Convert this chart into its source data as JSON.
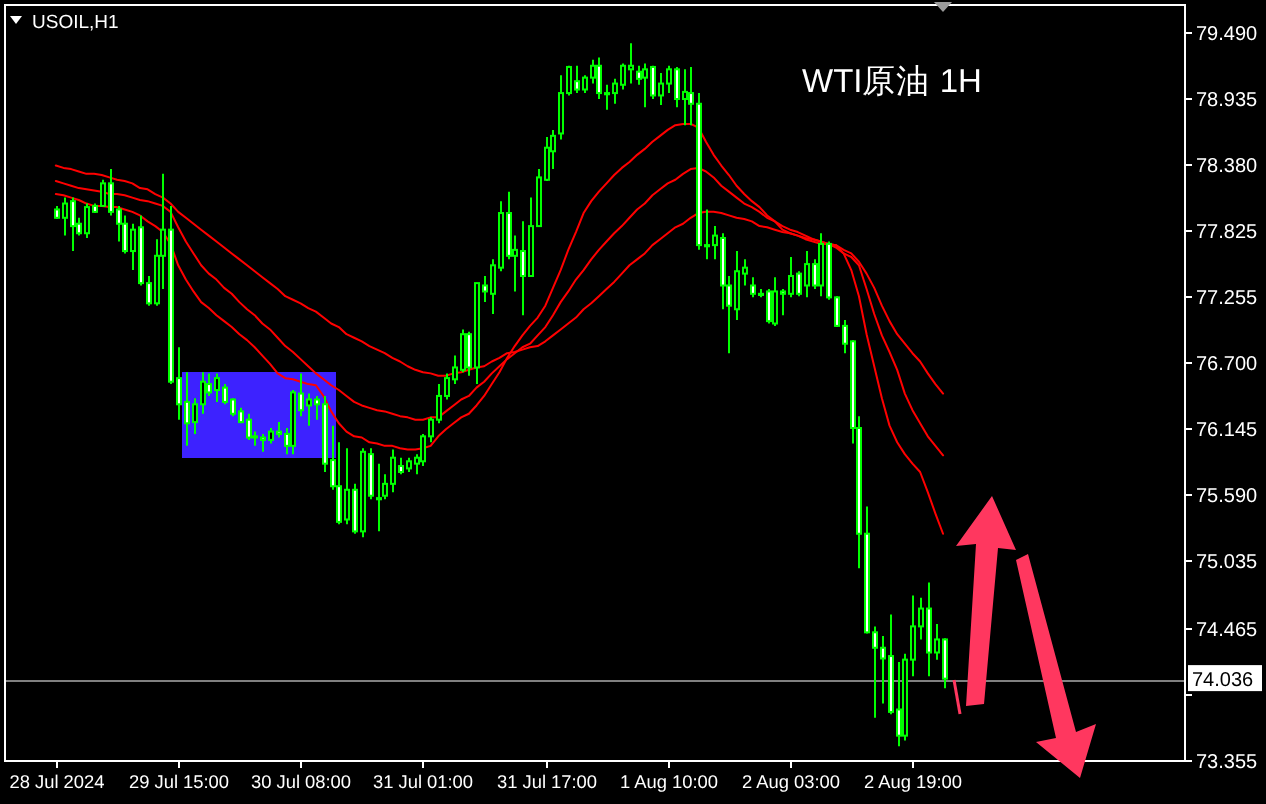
{
  "chart_data": {
    "type": "candlestick",
    "title": "USOIL,H1",
    "annotations": [
      "WTI原油 1H"
    ],
    "color": "#00ff00",
    "colors": [
      "#ffffff",
      "#000000",
      "#ffffff",
      "#ffffff",
      "#000000",
      "#ffffff",
      "#000000",
      "#ffffff",
      "#ffffff",
      "#ffffff",
      "#000000",
      "#ffffff",
      "#ffffff",
      "#000000",
      "#000000",
      "#ffffff",
      "#ffffff",
      "#ffffff",
      "#000000",
      "#000000",
      "#ffffff",
      "#000000",
      "#ffffff",
      "#ffffff",
      "#ffffff",
      "#ffffff",
      "#ffffff",
      "#ffffff",
      "#000000",
      "#ffffff",
      "#ffffff",
      "#000000",
      "#ffffff",
      "#000000",
      "#ffffff",
      "#ffffff",
      "#ffffff",
      "#ffffff",
      "#000000",
      "#ffffff",
      "#000000",
      "#ffffff",
      "#ffffff",
      "#000000",
      "#000000",
      "#ffffff",
      "#000000",
      "#000000",
      "#000000",
      "#000000",
      "#000000",
      "#000000",
      "#000000",
      "#000000",
      "#ffffff",
      "#000000",
      "#ffffff",
      "#000000",
      "#000000",
      "#ffffff",
      "#000000",
      "#ffffff",
      "#000000",
      "#000000",
      "#000000",
      "#000000",
      "#000000",
      "#000000",
      "#ffffff",
      "#000000",
      "#000000",
      "#ffffff",
      "#ffffff",
      "#000000",
      "#000000",
      "#000000",
      "#ffffff",
      "#000000",
      "#ffffff",
      "#000000",
      "#000000",
      "#ffffff",
      "#000000",
      "#ffffff",
      "#ffffff",
      "#ffffff",
      "#000000",
      "#ffffff",
      "#ffffff",
      "#000000",
      "#000000",
      "#ffffff",
      "#ffffff",
      "#ffffff",
      "#000000",
      "#ffffff",
      "#000000",
      "#ffffff",
      "#000000",
      "#ffffff",
      "#000000",
      "#ffffff",
      "#ffffff",
      "#ffffff",
      "#ffffff",
      "#ffffff",
      "#ffffff",
      "#ffffff",
      "#ffffff",
      "#ffffff",
      "#ffffff",
      "#000000",
      "#000000",
      "#000000",
      "#ffffff",
      "#000000",
      "#ffffff",
      null,
      null,
      null,
      null,
      null,
      null,
      null,
      null,
      null,
      null,
      null,
      null,
      null,
      null,
      null,
      null,
      null,
      null,
      null,
      null,
      null,
      null,
      null,
      null,
      null,
      null,
      null,
      null,
      null,
      null,
      null
    ],
    "categories": [
      "28 Jul 2024",
      null,
      null,
      null,
      null,
      null,
      null,
      null,
      null,
      null,
      null,
      null,
      null,
      null,
      null,
      null,
      "29 Jul 15:00",
      null,
      null,
      null,
      null,
      null,
      null,
      null,
      null,
      null,
      null,
      null,
      null,
      null,
      null,
      null,
      "30 Jul 08:00",
      null,
      null,
      null,
      null,
      null,
      null,
      null,
      null,
      null,
      null,
      null,
      null,
      null,
      null,
      null,
      "31 Jul 01:00",
      null,
      null,
      null,
      null,
      null,
      null,
      null,
      null,
      null,
      null,
      null,
      null,
      null,
      null,
      null,
      "31 Jul 17:00",
      null,
      null,
      null,
      null,
      null,
      null,
      null,
      null,
      null,
      null,
      null,
      null,
      null,
      null,
      null,
      "1 Aug 10:00",
      null,
      null,
      null,
      null,
      null,
      null,
      null,
      null,
      null,
      null,
      null,
      null,
      null,
      null,
      null,
      "2 Aug 03:00",
      null,
      null,
      null,
      null,
      null,
      null,
      null,
      null,
      null,
      null,
      null,
      null,
      null,
      null,
      null,
      "2 Aug 19:00",
      null,
      null,
      null,
      null,
      null,
      null,
      null,
      null,
      null,
      null,
      null,
      null,
      null,
      null,
      null,
      null,
      null,
      null,
      null,
      null,
      null,
      null,
      null,
      null,
      null,
      null,
      null,
      null,
      null,
      null,
      null,
      null,
      null,
      null,
      null
    ],
    "ohlc": [
      [
        77.99,
        78.02,
        77.91,
        77.92
      ],
      [
        77.92,
        78.09,
        77.77,
        78.04
      ],
      [
        78.06,
        78.09,
        77.64,
        77.85
      ],
      [
        77.87,
        77.92,
        77.77,
        77.79
      ],
      [
        77.79,
        78.04,
        77.75,
        78.01
      ],
      [
        78.02,
        78.04,
        77.96,
        77.97
      ],
      [
        78.02,
        78.24,
        78.02,
        78.21
      ],
      [
        78.21,
        78.33,
        77.94,
        77.97
      ],
      [
        77.99,
        78.02,
        77.72,
        77.87
      ],
      [
        77.87,
        77.94,
        77.62,
        77.64
      ],
      [
        77.64,
        77.87,
        77.48,
        77.82
      ],
      [
        77.84,
        77.94,
        77.35,
        77.37
      ],
      [
        77.37,
        77.43,
        77.18,
        77.2
      ],
      [
        77.2,
        77.74,
        77.18,
        77.6
      ],
      [
        77.6,
        78.29,
        77.32,
        77.82
      ],
      [
        77.82,
        78.02,
        76.52,
        76.54
      ],
      [
        76.57,
        76.83,
        76.22,
        76.35
      ],
      [
        76.37,
        76.62,
        76.0,
        76.19
      ],
      [
        76.2,
        76.4,
        76.1,
        76.35
      ],
      [
        76.35,
        76.62,
        76.27,
        76.54
      ],
      [
        76.52,
        76.61,
        76.42,
        76.45
      ],
      [
        76.47,
        76.61,
        76.37,
        76.57
      ],
      [
        76.49,
        76.52,
        76.35,
        76.37
      ],
      [
        76.39,
        76.4,
        76.25,
        76.27
      ],
      [
        76.29,
        76.32,
        76.19,
        76.2
      ],
      [
        76.22,
        76.27,
        76.05,
        76.07
      ],
      [
        76.08,
        76.12,
        76.0,
        76.07
      ],
      [
        76.07,
        76.1,
        75.95,
        76.05
      ],
      [
        76.05,
        76.15,
        76.02,
        76.12
      ],
      [
        76.12,
        76.2,
        76.07,
        76.1
      ],
      [
        76.1,
        76.15,
        75.93,
        76.0
      ],
      [
        76.0,
        76.47,
        75.93,
        76.45
      ],
      [
        76.44,
        76.61,
        76.25,
        76.3
      ],
      [
        76.34,
        76.44,
        76.17,
        76.39
      ],
      [
        76.39,
        76.42,
        76.22,
        76.35
      ],
      [
        76.35,
        76.42,
        75.78,
        75.85
      ],
      [
        75.88,
        76.17,
        75.63,
        75.66
      ],
      [
        75.66,
        76.03,
        75.34,
        75.36
      ],
      [
        75.38,
        75.98,
        75.34,
        75.63
      ],
      [
        75.63,
        75.68,
        75.26,
        75.28
      ],
      [
        75.28,
        75.98,
        75.23,
        75.95
      ],
      [
        75.93,
        75.98,
        75.55,
        75.58
      ],
      [
        75.56,
        75.85,
        75.28,
        75.55
      ],
      [
        75.58,
        75.76,
        75.55,
        75.68
      ],
      [
        75.68,
        75.97,
        75.61,
        75.9
      ],
      [
        75.83,
        75.9,
        75.76,
        75.78
      ],
      [
        75.81,
        75.9,
        75.78,
        75.87
      ],
      [
        75.85,
        75.93,
        75.76,
        75.9
      ],
      [
        75.87,
        76.1,
        75.83,
        76.08
      ],
      [
        76.08,
        76.24,
        76.03,
        76.22
      ],
      [
        76.22,
        76.52,
        76.19,
        76.42
      ],
      [
        76.42,
        76.61,
        76.39,
        76.57
      ],
      [
        76.56,
        76.76,
        76.52,
        76.66
      ],
      [
        76.64,
        76.98,
        76.62,
        76.94
      ],
      [
        76.94,
        76.96,
        76.59,
        76.66
      ],
      [
        76.66,
        77.37,
        76.52,
        77.37
      ],
      [
        77.35,
        77.43,
        77.21,
        77.3
      ],
      [
        77.28,
        77.57,
        77.11,
        77.52
      ],
      [
        77.5,
        78.06,
        77.47,
        77.96
      ],
      [
        77.96,
        78.14,
        77.57,
        77.6
      ],
      [
        77.6,
        77.77,
        77.3,
        77.65
      ],
      [
        77.64,
        77.89,
        77.1,
        77.43
      ],
      [
        77.43,
        78.09,
        77.43,
        77.85
      ],
      [
        77.85,
        78.33,
        77.85,
        78.26
      ],
      [
        78.24,
        78.6,
        78.23,
        78.51
      ],
      [
        78.48,
        78.66,
        78.33,
        78.61
      ],
      [
        78.63,
        79.12,
        78.58,
        78.97
      ],
      [
        78.97,
        79.2,
        78.95,
        79.19
      ],
      [
        79.07,
        79.2,
        78.97,
        79.0
      ],
      [
        79.0,
        79.12,
        78.97,
        79.1
      ],
      [
        79.1,
        79.25,
        79.05,
        79.2
      ],
      [
        79.2,
        79.27,
        78.92,
        78.97
      ],
      [
        78.97,
        79.04,
        78.83,
        78.96
      ],
      [
        78.97,
        79.09,
        78.88,
        79.05
      ],
      [
        79.04,
        79.22,
        79.0,
        79.2
      ],
      [
        79.17,
        79.39,
        79.05,
        79.2
      ],
      [
        79.15,
        79.2,
        79.04,
        79.09
      ],
      [
        79.1,
        79.22,
        78.85,
        79.17
      ],
      [
        79.19,
        79.2,
        78.92,
        78.95
      ],
      [
        78.95,
        79.14,
        78.87,
        79.05
      ],
      [
        79.05,
        79.2,
        78.97,
        79.17
      ],
      [
        79.17,
        79.19,
        78.85,
        78.92
      ],
      [
        78.92,
        79.17,
        78.7,
        78.98
      ],
      [
        78.97,
        79.19,
        78.7,
        78.88
      ],
      [
        78.88,
        78.97,
        77.65,
        77.69
      ],
      [
        77.69,
        77.99,
        77.57,
        77.68
      ],
      [
        77.69,
        77.85,
        77.57,
        77.77
      ],
      [
        77.75,
        77.79,
        77.15,
        77.35
      ],
      [
        77.35,
        77.43,
        76.78,
        77.18
      ],
      [
        77.15,
        77.64,
        77.06,
        77.47
      ],
      [
        77.45,
        77.57,
        77.35,
        77.5
      ],
      [
        77.35,
        77.42,
        77.25,
        77.28
      ],
      [
        77.28,
        77.32,
        77.25,
        77.27
      ],
      [
        77.3,
        77.32,
        77.03,
        77.05
      ],
      [
        77.03,
        77.42,
        77.01,
        77.3
      ],
      [
        77.3,
        77.32,
        77.1,
        77.28
      ],
      [
        77.28,
        77.59,
        77.25,
        77.43
      ],
      [
        77.45,
        77.47,
        77.26,
        77.28
      ],
      [
        77.35,
        77.64,
        77.25,
        77.53
      ],
      [
        77.53,
        77.57,
        77.32,
        77.35
      ],
      [
        77.35,
        77.79,
        77.26,
        77.7
      ],
      [
        77.7,
        77.72,
        77.23,
        77.25
      ],
      [
        77.25,
        77.26,
        77.0,
        77.01
      ],
      [
        77.01,
        77.06,
        76.78,
        76.86
      ],
      [
        76.88,
        76.89,
        76.02,
        76.15
      ],
      [
        76.15,
        76.25,
        74.97,
        75.26
      ],
      [
        75.26,
        75.49,
        74.42,
        74.43
      ],
      [
        74.43,
        74.48,
        73.71,
        74.3
      ],
      [
        74.3,
        74.4,
        73.83,
        74.21
      ],
      [
        74.23,
        74.58,
        73.74,
        73.76
      ],
      [
        73.78,
        74.18,
        73.47,
        73.56
      ],
      [
        73.56,
        74.25,
        73.52,
        74.2
      ],
      [
        74.2,
        74.74,
        74.06,
        74.48
      ],
      [
        74.48,
        74.72,
        74.37,
        74.63
      ],
      [
        74.63,
        74.85,
        74.06,
        74.26
      ],
      [
        74.26,
        74.5,
        74.2,
        74.37
      ],
      [
        74.37,
        74.38,
        73.96,
        74.04
      ],
      null,
      null,
      null,
      null,
      null,
      null,
      null,
      null,
      null,
      null,
      null,
      null,
      null,
      null,
      null,
      null,
      null,
      null,
      null,
      null,
      null,
      null,
      null,
      null,
      null,
      null,
      null,
      null,
      null,
      null,
      null
    ],
    "series": [
      {
        "type": "line",
        "color": "#ff0000",
        "values": [
          78.36,
          78.34,
          78.33,
          78.31,
          78.29,
          78.29,
          78.28,
          78.26,
          78.24,
          78.23,
          78.21,
          78.17,
          78.16,
          78.12,
          78.09,
          78.04,
          77.97,
          77.92,
          77.87,
          77.82,
          77.77,
          77.72,
          77.67,
          77.62,
          77.57,
          77.52,
          77.47,
          77.42,
          77.37,
          77.32,
          77.26,
          77.23,
          77.2,
          77.16,
          77.13,
          77.08,
          77.03,
          77.0,
          76.94,
          76.91,
          76.88,
          76.84,
          76.81,
          76.78,
          76.74,
          76.71,
          76.67,
          76.64,
          76.62,
          76.61,
          76.59,
          76.59,
          76.61,
          76.62,
          76.64,
          76.66,
          76.67,
          76.71,
          76.74,
          76.78,
          76.79,
          76.81,
          76.83,
          76.84,
          76.88,
          76.93,
          76.98,
          77.03,
          77.08,
          77.15,
          77.2,
          77.26,
          77.32,
          77.38,
          77.45,
          77.52,
          77.57,
          77.62,
          77.69,
          77.74,
          77.79,
          77.84,
          77.87,
          77.92,
          77.96,
          77.97,
          77.97,
          77.96,
          77.94,
          77.92,
          77.91,
          77.89,
          77.85,
          77.84,
          77.82,
          77.8,
          77.79,
          77.77,
          77.75,
          77.74,
          77.72,
          77.7,
          77.69,
          77.65,
          77.62,
          77.55,
          77.45,
          77.33,
          77.18,
          77.05,
          76.94,
          76.86,
          76.78,
          76.71,
          76.61,
          76.52,
          76.44,
          null,
          null,
          null,
          null,
          null,
          null,
          null,
          null,
          null,
          null,
          null,
          null,
          null,
          null,
          null,
          null,
          null,
          null,
          null,
          null,
          null,
          null,
          null,
          null,
          null,
          null,
          null,
          null,
          null,
          null,
          null
        ]
      },
      {
        "type": "line",
        "color": "#ff0000",
        "values": [
          78.23,
          78.21,
          78.19,
          78.17,
          78.16,
          78.15,
          78.14,
          78.12,
          78.12,
          78.11,
          78.09,
          78.07,
          78.06,
          78.04,
          78.02,
          77.97,
          77.84,
          77.72,
          77.62,
          77.52,
          77.45,
          77.4,
          77.33,
          77.28,
          77.21,
          77.15,
          77.1,
          77.03,
          76.98,
          76.91,
          76.84,
          76.79,
          76.73,
          76.67,
          76.61,
          76.56,
          76.51,
          76.47,
          76.42,
          76.37,
          76.34,
          76.32,
          76.3,
          76.29,
          76.27,
          76.25,
          76.24,
          76.22,
          76.22,
          76.24,
          76.24,
          76.29,
          76.34,
          76.39,
          76.42,
          76.49,
          76.54,
          76.61,
          76.67,
          76.73,
          76.78,
          76.83,
          76.86,
          76.93,
          77.0,
          77.1,
          77.21,
          77.3,
          77.4,
          77.48,
          77.57,
          77.65,
          77.72,
          77.79,
          77.85,
          77.92,
          77.99,
          78.04,
          78.11,
          78.16,
          78.21,
          78.24,
          78.29,
          78.33,
          78.34,
          78.31,
          78.26,
          78.19,
          78.14,
          78.09,
          78.04,
          78.01,
          77.97,
          77.92,
          77.89,
          77.85,
          77.82,
          77.8,
          77.77,
          77.74,
          77.72,
          77.7,
          77.67,
          77.62,
          77.59,
          77.52,
          77.32,
          77.11,
          76.93,
          76.79,
          76.64,
          76.44,
          76.3,
          76.19,
          76.08,
          76.0,
          75.92,
          null,
          null,
          null,
          null,
          null,
          null,
          null,
          null,
          null,
          null,
          null,
          null,
          null,
          null,
          null,
          null,
          null,
          null,
          null,
          null,
          null,
          null,
          null,
          null,
          null,
          null,
          null,
          null,
          null,
          null,
          null
        ]
      },
      {
        "type": "line",
        "color": "#ff0000",
        "values": [
          78.12,
          78.11,
          78.09,
          78.07,
          78.04,
          78.02,
          78.02,
          78.01,
          78.01,
          77.99,
          77.97,
          77.94,
          77.89,
          77.85,
          77.8,
          77.7,
          77.52,
          77.4,
          77.3,
          77.21,
          77.16,
          77.1,
          77.05,
          77.0,
          76.94,
          76.89,
          76.83,
          76.76,
          76.69,
          76.61,
          76.57,
          76.56,
          76.54,
          76.52,
          76.51,
          76.42,
          76.29,
          76.19,
          76.12,
          76.08,
          76.07,
          76.03,
          76.02,
          76.0,
          76.0,
          75.98,
          75.97,
          75.97,
          75.98,
          76.0,
          76.08,
          76.14,
          76.19,
          76.24,
          76.27,
          76.34,
          76.42,
          76.52,
          76.62,
          76.74,
          76.84,
          76.93,
          77.01,
          77.08,
          77.18,
          77.33,
          77.48,
          77.65,
          77.8,
          77.96,
          78.06,
          78.14,
          78.21,
          78.28,
          78.34,
          78.39,
          78.45,
          78.5,
          78.56,
          78.61,
          78.66,
          78.7,
          78.71,
          78.71,
          78.68,
          78.56,
          78.45,
          78.36,
          78.28,
          78.19,
          78.12,
          78.06,
          78.01,
          77.94,
          77.89,
          77.82,
          77.79,
          77.77,
          77.74,
          77.72,
          77.7,
          77.7,
          77.69,
          77.62,
          77.48,
          77.26,
          76.94,
          76.67,
          76.4,
          76.17,
          76.03,
          75.93,
          75.85,
          75.78,
          75.61,
          75.43,
          75.26,
          null,
          null,
          null,
          null,
          null,
          null,
          null,
          null,
          null,
          null,
          null,
          null,
          null,
          null,
          null,
          null,
          null,
          null,
          null,
          null,
          null,
          null,
          null,
          null,
          null,
          null,
          null,
          null,
          null,
          null,
          null
        ]
      }
    ],
    "ylim": [
      73.355,
      79.72
    ],
    "yticks": [
      {
        "value": 79.49,
        "label": "79.490"
      },
      {
        "value": 78.935,
        "label": "78.935"
      },
      {
        "value": 78.38,
        "label": "78.380"
      },
      {
        "value": 77.825,
        "label": "77.825"
      },
      {
        "value": 77.255,
        "label": "77.255"
      },
      {
        "value": 76.7,
        "label": "76.700"
      },
      {
        "value": 76.145,
        "label": "76.145"
      },
      {
        "value": 75.59,
        "label": "75.590"
      },
      {
        "value": 75.035,
        "label": "75.035"
      },
      {
        "value": 74.465,
        "label": "74.465"
      },
      {
        "value": 73.91,
        "label": null
      },
      {
        "value": 73.355,
        "label": "73.355"
      }
    ],
    "ref_lines": [
      {
        "axis": "y",
        "value": 74.036,
        "label": "74.036",
        "color": "#808080"
      }
    ]
  }
}
